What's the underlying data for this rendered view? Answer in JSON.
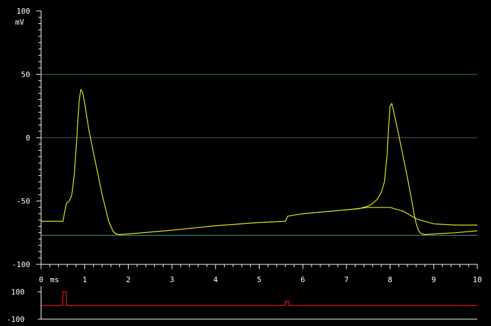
{
  "chart_data": [
    {
      "type": "line",
      "title": "",
      "xlabel": "",
      "ylabel": "",
      "x_unit": "ms",
      "y_unit": "mV",
      "xlim": [
        0,
        10
      ],
      "ylim": [
        -100,
        100
      ],
      "x_ticks": [
        "0",
        "1",
        "2",
        "3",
        "4",
        "5",
        "6",
        "7",
        "8",
        "9",
        "10"
      ],
      "y_ticks": [
        "100",
        "50",
        "0",
        "-50",
        "-100"
      ],
      "grid": false,
      "reference_lines": [
        {
          "y": 50,
          "color": "#1f7a3a"
        },
        {
          "y": 0,
          "color": "#555555"
        },
        {
          "y": -77,
          "color": "#3aa07a"
        }
      ],
      "series": [
        {
          "color": "#e8e820",
          "x": [
            0,
            0.5,
            0.58,
            0.64,
            0.7,
            0.76,
            0.82,
            0.87,
            0.91,
            0.95,
            1.0,
            1.1,
            1.25,
            1.4,
            1.55,
            1.65,
            1.72,
            1.8,
            2.0,
            3.0,
            4.0,
            5.0,
            5.6,
            5.65,
            6.0,
            7.0,
            7.3,
            7.5,
            7.6,
            7.7,
            7.8,
            7.87,
            7.93,
            7.97,
            8.0,
            8.04,
            8.1,
            8.2,
            8.3,
            8.4,
            8.5,
            8.55,
            8.6,
            8.65,
            8.7,
            8.8,
            9.0,
            9.5,
            10.0
          ],
          "y": [
            -66,
            -66,
            -52,
            -50,
            -46,
            -30,
            0,
            28,
            38,
            36,
            27,
            5,
            -20,
            -45,
            -66,
            -74,
            -76,
            -76.5,
            -76,
            -73,
            -69.5,
            -67,
            -66,
            -62,
            -60,
            -57,
            -56,
            -54,
            -52,
            -49,
            -43,
            -35,
            -15,
            10,
            25,
            27,
            18,
            2,
            -15,
            -32,
            -50,
            -60,
            -68,
            -73,
            -75.5,
            -76.5,
            -76,
            -75,
            -73.5
          ]
        },
        {
          "color": "#e8e820",
          "x": [
            7.0,
            7.5,
            8.0,
            8.3,
            8.6,
            9.0,
            9.5,
            10.0
          ],
          "y": [
            -57,
            -55,
            -55,
            -58,
            -64,
            -68,
            -69,
            -69
          ]
        }
      ]
    },
    {
      "type": "line",
      "title": "",
      "xlabel": "",
      "ylabel": "",
      "xlim": [
        0,
        10
      ],
      "ylim": [
        -100,
        100
      ],
      "y_ticks": [
        "100",
        "-100"
      ],
      "grid": false,
      "series": [
        {
          "color": "#e01818",
          "x": [
            0,
            0.5,
            0.5,
            0.58,
            0.58,
            5.6,
            5.6,
            5.68,
            5.68,
            10.0
          ],
          "y": [
            0,
            0,
            100,
            100,
            0,
            0,
            30,
            30,
            0,
            0
          ]
        }
      ]
    }
  ]
}
